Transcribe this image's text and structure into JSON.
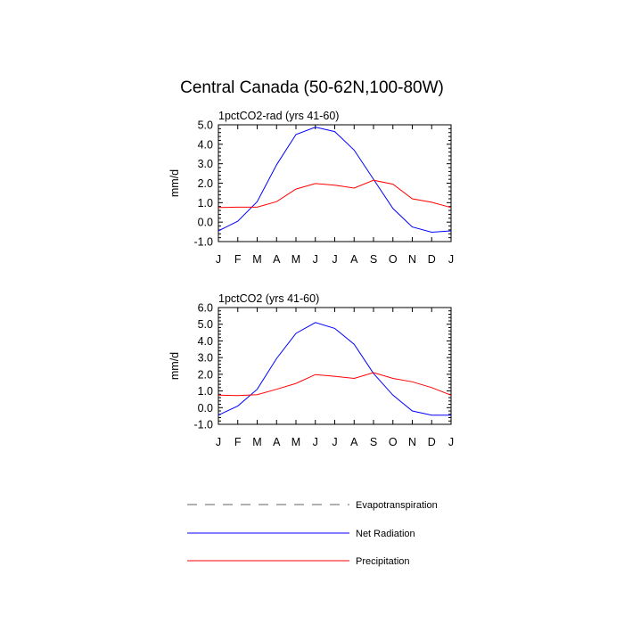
{
  "title": "Central Canada (50-62N,100-80W)",
  "colors": {
    "net_radiation": "#0000ff",
    "precipitation": "#ff0000",
    "evapotranspiration": "#808080"
  },
  "legend": {
    "placement": "bottom",
    "items": [
      {
        "label": "Evapotranspiration",
        "style": "dashed",
        "color": "#808080"
      },
      {
        "label": "Net Radiation",
        "style": "solid",
        "color": "#0000ff"
      },
      {
        "label": "Precipitation",
        "style": "solid",
        "color": "#ff0000"
      }
    ]
  },
  "chart_data": [
    {
      "type": "line",
      "title": "1pctCO2-rad (yrs 41-60)",
      "ylabel": "mm/d",
      "categories": [
        "J",
        "F",
        "M",
        "A",
        "M",
        "J",
        "J",
        "A",
        "S",
        "O",
        "N",
        "D",
        "J"
      ],
      "yticks": [
        "5.0",
        "4.0",
        "3.0",
        "2.0",
        "1.0",
        "0.0",
        "-1.0"
      ],
      "ylim": [
        -1.0,
        5.0
      ],
      "series": [
        {
          "name": "Net Radiation",
          "color": "#0000ff",
          "values": [
            -0.45,
            0.05,
            1.05,
            2.95,
            4.5,
            4.88,
            4.65,
            3.7,
            2.2,
            0.7,
            -0.25,
            -0.52,
            -0.45
          ]
        },
        {
          "name": "Precipitation",
          "color": "#ff0000",
          "values": [
            0.75,
            0.77,
            0.77,
            1.05,
            1.7,
            1.98,
            1.9,
            1.75,
            2.15,
            1.95,
            1.2,
            1.02,
            0.75
          ]
        }
      ]
    },
    {
      "type": "line",
      "title": "1pctCO2 (yrs 41-60)",
      "ylabel": "mm/d",
      "categories": [
        "J",
        "F",
        "M",
        "A",
        "M",
        "J",
        "J",
        "A",
        "S",
        "O",
        "N",
        "D",
        "J"
      ],
      "yticks": [
        "6.0",
        "5.0",
        "4.0",
        "3.0",
        "2.0",
        "1.0",
        "0.0",
        "-1.0"
      ],
      "ylim": [
        -1.0,
        6.0
      ],
      "series": [
        {
          "name": "Net Radiation",
          "color": "#0000ff",
          "values": [
            -0.45,
            0.1,
            1.1,
            2.95,
            4.45,
            5.1,
            4.75,
            3.8,
            2.05,
            0.75,
            -0.2,
            -0.45,
            -0.45
          ]
        },
        {
          "name": "Precipitation",
          "color": "#ff0000",
          "values": [
            0.75,
            0.72,
            0.78,
            1.1,
            1.45,
            1.98,
            1.88,
            1.75,
            2.1,
            1.75,
            1.55,
            1.2,
            0.75
          ]
        }
      ]
    }
  ]
}
